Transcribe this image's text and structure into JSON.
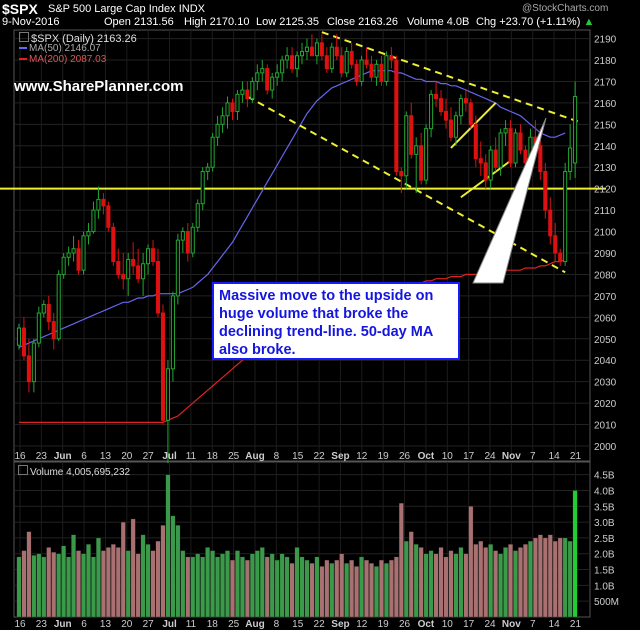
{
  "header": {
    "symbol": "$SPX",
    "name": "S&P 500 Large Cap Index",
    "exchange": "INDX",
    "date": "9-Nov-2016",
    "open": "Open 2131.56",
    "high": "High 2170.10",
    "low": "Low 2125.35",
    "close": "Close 2163.26",
    "volume": "Volume 4.0B",
    "chg": "Chg +23.70 (+1.11%)",
    "arrow": "▲",
    "watermark": "@StockCharts.com"
  },
  "legend": {
    "price": "$SPX (Daily) 2163.26",
    "ma50": "MA(50) 2146.07",
    "ma200": "MA(200) 2087.03"
  },
  "brand": "www.SharePlanner.com",
  "annotation": "Massive move to the upside on huge volume that broke the declining trend-line. 50-day MA also broke.",
  "volume_label": "Volume 4,005,695,232",
  "colors": {
    "up": "#22a832",
    "down": "#dd1111",
    "ma50": "#6666ee",
    "ma200": "#dd2222",
    "trend": "#eeee33",
    "vol_up": "#3a9a4a",
    "vol_down": "#a87070"
  },
  "chart_data": {
    "type": "candlestick",
    "y_ticks": [
      2000,
      2010,
      2020,
      2030,
      2040,
      2050,
      2060,
      2070,
      2080,
      2090,
      2100,
      2110,
      2120,
      2130,
      2140,
      2150,
      2160,
      2170,
      2180,
      2190
    ],
    "ylim": [
      1993,
      2194
    ],
    "volume_ticks": [
      "500M",
      "1.0B",
      "1.5B",
      "2.0B",
      "2.5B",
      "3.0B",
      "3.5B",
      "4.0B",
      "4.5B"
    ],
    "volume_tick_values": [
      0.5,
      1.0,
      1.5,
      2.0,
      2.5,
      3.0,
      3.5,
      4.0,
      4.5
    ],
    "volume_ylim": [
      0,
      4.9
    ],
    "x_ticks": [
      "16",
      "23",
      "Jun",
      "6",
      "13",
      "20",
      "27",
      "Jul",
      "11",
      "18",
      "25",
      "Aug",
      "8",
      "15",
      "22",
      "Sep",
      "12",
      "19",
      "26",
      "Oct",
      "10",
      "17",
      "24",
      "Nov",
      "7",
      "14",
      "21"
    ],
    "bold_ticks": [
      "Jun",
      "Jul",
      "Aug",
      "Sep",
      "Oct",
      "Nov"
    ],
    "horizontal_level": 2120,
    "ohlc": [
      [
        2047,
        2057,
        2045,
        2055
      ],
      [
        2055,
        2060,
        2040,
        2042
      ],
      [
        2042,
        2050,
        2025,
        2030
      ],
      [
        2030,
        2050,
        2025,
        2048
      ],
      [
        2048,
        2065,
        2046,
        2062
      ],
      [
        2062,
        2068,
        2060,
        2066
      ],
      [
        2066,
        2070,
        2054,
        2058
      ],
      [
        2058,
        2062,
        2045,
        2050
      ],
      [
        2050,
        2082,
        2049,
        2080
      ],
      [
        2080,
        2090,
        2078,
        2088
      ],
      [
        2088,
        2093,
        2084,
        2090
      ],
      [
        2090,
        2098,
        2086,
        2092
      ],
      [
        2092,
        2096,
        2080,
        2082
      ],
      [
        2082,
        2100,
        2080,
        2098
      ],
      [
        2098,
        2104,
        2094,
        2100
      ],
      [
        2100,
        2114,
        2099,
        2110
      ],
      [
        2110,
        2121,
        2106,
        2115
      ],
      [
        2115,
        2118,
        2108,
        2112
      ],
      [
        2112,
        2114,
        2100,
        2102
      ],
      [
        2102,
        2104,
        2084,
        2086
      ],
      [
        2086,
        2092,
        2078,
        2080
      ],
      [
        2080,
        2090,
        2073,
        2078
      ],
      [
        2078,
        2090,
        2070,
        2087
      ],
      [
        2087,
        2095,
        2080,
        2084
      ],
      [
        2084,
        2092,
        2076,
        2078
      ],
      [
        2078,
        2090,
        2070,
        2085
      ],
      [
        2085,
        2094,
        2080,
        2092
      ],
      [
        2092,
        2096,
        2084,
        2086
      ],
      [
        2086,
        2092,
        2060,
        2062
      ],
      [
        2062,
        2066,
        2010,
        2012
      ],
      [
        2012,
        2040,
        1992,
        2036
      ],
      [
        2036,
        2072,
        2030,
        2070
      ],
      [
        2070,
        2099,
        2066,
        2096
      ],
      [
        2096,
        2102,
        2090,
        2100
      ],
      [
        2100,
        2104,
        2086,
        2090
      ],
      [
        2090,
        2104,
        2088,
        2102
      ],
      [
        2102,
        2115,
        2100,
        2113
      ],
      [
        2113,
        2130,
        2110,
        2128
      ],
      [
        2128,
        2132,
        2124,
        2130
      ],
      [
        2130,
        2146,
        2128,
        2144
      ],
      [
        2144,
        2154,
        2140,
        2150
      ],
      [
        2150,
        2158,
        2146,
        2154
      ],
      [
        2154,
        2163,
        2148,
        2160
      ],
      [
        2160,
        2162,
        2152,
        2156
      ],
      [
        2156,
        2166,
        2152,
        2164
      ],
      [
        2164,
        2170,
        2160,
        2166
      ],
      [
        2166,
        2170,
        2158,
        2162
      ],
      [
        2162,
        2172,
        2160,
        2170
      ],
      [
        2170,
        2178,
        2166,
        2174
      ],
      [
        2174,
        2180,
        2170,
        2176
      ],
      [
        2176,
        2178,
        2164,
        2166
      ],
      [
        2166,
        2174,
        2162,
        2172
      ],
      [
        2172,
        2178,
        2168,
        2174
      ],
      [
        2174,
        2182,
        2170,
        2180
      ],
      [
        2180,
        2186,
        2176,
        2182
      ],
      [
        2182,
        2186,
        2174,
        2176
      ],
      [
        2176,
        2184,
        2172,
        2182
      ],
      [
        2182,
        2188,
        2178,
        2184
      ],
      [
        2184,
        2190,
        2180,
        2186
      ],
      [
        2186,
        2192,
        2182,
        2182
      ],
      [
        2182,
        2190,
        2178,
        2188
      ],
      [
        2188,
        2192,
        2180,
        2182
      ],
      [
        2182,
        2186,
        2174,
        2176
      ],
      [
        2176,
        2188,
        2174,
        2186
      ],
      [
        2186,
        2192,
        2180,
        2182
      ],
      [
        2182,
        2186,
        2172,
        2174
      ],
      [
        2174,
        2186,
        2172,
        2184
      ],
      [
        2184,
        2188,
        2176,
        2178
      ],
      [
        2178,
        2180,
        2168,
        2170
      ],
      [
        2170,
        2182,
        2168,
        2180
      ],
      [
        2180,
        2186,
        2176,
        2178
      ],
      [
        2178,
        2182,
        2170,
        2172
      ],
      [
        2172,
        2180,
        2168,
        2178
      ],
      [
        2178,
        2182,
        2168,
        2170
      ],
      [
        2170,
        2184,
        2168,
        2182
      ],
      [
        2182,
        2186,
        2176,
        2180
      ],
      [
        2180,
        2182,
        2126,
        2128
      ],
      [
        2128,
        2130,
        2118,
        2126
      ],
      [
        2126,
        2156,
        2120,
        2154
      ],
      [
        2154,
        2160,
        2134,
        2136
      ],
      [
        2136,
        2144,
        2118,
        2140
      ],
      [
        2140,
        2146,
        2122,
        2124
      ],
      [
        2124,
        2150,
        2122,
        2148
      ],
      [
        2148,
        2166,
        2144,
        2164
      ],
      [
        2164,
        2170,
        2158,
        2162
      ],
      [
        2162,
        2166,
        2154,
        2156
      ],
      [
        2156,
        2162,
        2148,
        2152
      ],
      [
        2152,
        2158,
        2142,
        2144
      ],
      [
        2144,
        2156,
        2140,
        2154
      ],
      [
        2154,
        2164,
        2150,
        2162
      ],
      [
        2162,
        2166,
        2156,
        2160
      ],
      [
        2160,
        2162,
        2148,
        2150
      ],
      [
        2150,
        2154,
        2130,
        2134
      ],
      [
        2134,
        2142,
        2126,
        2132
      ],
      [
        2132,
        2136,
        2120,
        2124
      ],
      [
        2124,
        2140,
        2120,
        2138
      ],
      [
        2138,
        2144,
        2128,
        2130
      ],
      [
        2130,
        2148,
        2126,
        2146
      ],
      [
        2146,
        2152,
        2140,
        2148
      ],
      [
        2148,
        2152,
        2130,
        2132
      ],
      [
        2132,
        2148,
        2130,
        2146
      ],
      [
        2146,
        2150,
        2136,
        2138
      ],
      [
        2138,
        2140,
        2128,
        2132
      ],
      [
        2132,
        2148,
        2130,
        2144
      ],
      [
        2144,
        2152,
        2138,
        2140
      ],
      [
        2140,
        2148,
        2124,
        2128
      ],
      [
        2128,
        2132,
        2106,
        2110
      ],
      [
        2110,
        2116,
        2094,
        2098
      ],
      [
        2098,
        2104,
        2086,
        2090
      ],
      [
        2090,
        2092,
        2084,
        2086
      ],
      [
        2086,
        2132,
        2084,
        2128
      ],
      [
        2128,
        2150,
        2124,
        2139
      ],
      [
        2132,
        2170,
        2125,
        2163
      ]
    ],
    "volume_b": [
      1.9,
      2.1,
      2.7,
      1.95,
      2.0,
      1.9,
      2.2,
      2.05,
      2.0,
      2.25,
      1.9,
      2.6,
      2.1,
      2.0,
      2.3,
      1.9,
      2.5,
      2.1,
      2.2,
      2.3,
      2.2,
      3.0,
      2.1,
      3.1,
      2.0,
      2.6,
      2.3,
      2.1,
      2.4,
      2.9,
      4.5,
      3.2,
      2.9,
      2.1,
      1.9,
      1.9,
      2.0,
      1.9,
      2.2,
      2.1,
      1.9,
      2.0,
      2.1,
      1.8,
      2.1,
      1.9,
      1.8,
      2.0,
      2.1,
      2.2,
      1.9,
      2.0,
      1.8,
      2.0,
      1.9,
      1.7,
      2.2,
      1.9,
      1.8,
      1.7,
      1.9,
      1.6,
      1.8,
      1.7,
      1.8,
      2.0,
      1.7,
      1.8,
      1.6,
      1.9,
      1.8,
      1.7,
      1.6,
      1.8,
      1.7,
      1.8,
      1.9,
      3.6,
      2.4,
      2.7,
      2.3,
      2.2,
      2.0,
      2.1,
      2.0,
      2.2,
      1.9,
      2.1,
      2.0,
      2.2,
      2.0,
      3.5,
      2.3,
      2.4,
      2.2,
      2.3,
      2.1,
      2.0,
      2.2,
      2.3,
      2.1,
      2.2,
      2.3,
      2.4,
      2.5,
      2.6,
      2.5,
      2.6,
      2.4,
      2.5,
      2.5,
      2.4,
      4.0
    ],
    "ma50": [
      2046,
      2047,
      2048,
      2049,
      2050,
      2051,
      2052,
      2053,
      2054,
      2055,
      2056,
      2057,
      2058,
      2059,
      2060,
      2061,
      2062,
      2063,
      2064,
      2065,
      2066,
      2067,
      2067,
      2068,
      2069,
      2069,
      2070,
      2070,
      2071,
      2071,
      2071,
      2071,
      2071,
      2072,
      2073,
      2074,
      2076,
      2078,
      2080,
      2083,
      2086,
      2089,
      2092,
      2095,
      2099,
      2103,
      2107,
      2111,
      2115,
      2119,
      2123,
      2127,
      2131,
      2135,
      2139,
      2143,
      2147,
      2151,
      2155,
      2158,
      2161,
      2163,
      2165,
      2167,
      2168,
      2169,
      2170,
      2171,
      2172,
      2173,
      2174,
      2175,
      2175,
      2175,
      2175,
      2175,
      2174,
      2174,
      2173,
      2172,
      2171,
      2171,
      2170,
      2170,
      2170,
      2169,
      2169,
      2168,
      2168,
      2167,
      2166,
      2165,
      2164,
      2163,
      2162,
      2161,
      2160,
      2158,
      2157,
      2156,
      2155,
      2154,
      2152,
      2150,
      2148,
      2146,
      2145,
      2144,
      2144,
      2145,
      2146
    ],
    "ma200": [
      2011,
      2011,
      2011,
      2011,
      2011,
      2011,
      2011,
      2011,
      2011,
      2011,
      2011,
      2011,
      2011,
      2011,
      2011,
      2011,
      2011,
      2011,
      2011,
      2011,
      2011,
      2011,
      2011,
      2011,
      2011,
      2011,
      2011,
      2011,
      2011,
      2011,
      2012,
      2013,
      2014,
      2016,
      2018,
      2020,
      2022,
      2024,
      2026,
      2028,
      2030,
      2032,
      2034,
      2036,
      2038,
      2040,
      2042,
      2044,
      2046,
      2048,
      2049,
      2050,
      2051,
      2052,
      2053,
      2054,
      2055,
      2056,
      2057,
      2058,
      2059,
      2060,
      2061,
      2062,
      2063,
      2064,
      2065,
      2066,
      2067,
      2068,
      2069,
      2070,
      2071,
      2072,
      2073,
      2073,
      2074,
      2074,
      2075,
      2075,
      2076,
      2076,
      2077,
      2077,
      2078,
      2078,
      2078,
      2079,
      2079,
      2079,
      2080,
      2080,
      2080,
      2080,
      2081,
      2081,
      2081,
      2081,
      2082,
      2082,
      2082,
      2082,
      2083,
      2083,
      2083,
      2084,
      2084,
      2085,
      2086,
      2086,
      2087
    ]
  }
}
